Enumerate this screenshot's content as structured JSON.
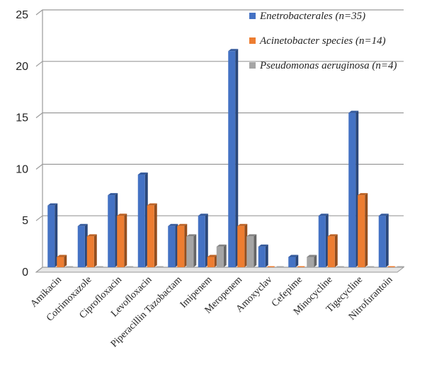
{
  "chart_data": {
    "type": "bar",
    "title": "",
    "xlabel": "",
    "ylabel": "",
    "ylim": [
      0,
      25
    ],
    "yticks": [
      0,
      5,
      10,
      15,
      20,
      25
    ],
    "grid": true,
    "legend_position": "top-right",
    "categories": [
      "Amikacin",
      "Cotrimoxazole",
      "Ciprofloxacin",
      "Levofloxacin",
      "Piperacillin Tazobactam",
      "Imipenem",
      "Meropenem",
      "Amoxyclav",
      "Cefepime",
      "Minocycline",
      "Tigecycline",
      "Nitrofurantoin"
    ],
    "series": [
      {
        "name": "Enetrobacterales (n=35)",
        "color": "#4472C4",
        "values": [
          6,
          4,
          7,
          9,
          4,
          5,
          21,
          2,
          1,
          5,
          15,
          5
        ]
      },
      {
        "name": "Acinetobacter species (n=14)",
        "color": "#ED7D31",
        "values": [
          1,
          3,
          5,
          6,
          4,
          1,
          4,
          0,
          0,
          3,
          7,
          0
        ]
      },
      {
        "name": "Pseudomonas aeruginosa (n=4)",
        "color": "#A5A5A5",
        "values": [
          0,
          0,
          0,
          0,
          3,
          2,
          3,
          0,
          1,
          0,
          0,
          0
        ]
      }
    ]
  }
}
